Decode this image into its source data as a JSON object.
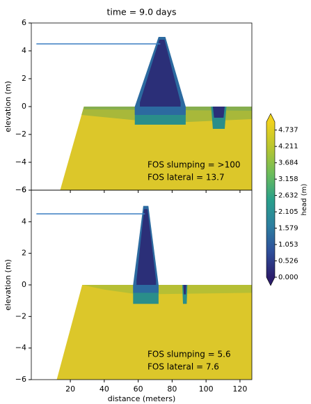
{
  "chart_data": [
    {
      "type": "contour",
      "title": "time = 9.0 days",
      "ylabel": "elevation (m)",
      "xlim": [
        -3,
        127
      ],
      "ylim": [
        -6,
        6
      ],
      "xticks": [
        20,
        40,
        60,
        80,
        100,
        120
      ],
      "yticks": [
        {
          "value": -6,
          "label": "−6"
        },
        {
          "value": -4,
          "label": "−4"
        },
        {
          "value": -2,
          "label": "−2"
        },
        0,
        2,
        4,
        6
      ],
      "water_level": {
        "color": "#3a7dc2",
        "x": [
          0,
          73
        ],
        "y": [
          4.5,
          4.5
        ]
      },
      "regions": [
        {
          "color": "#dcc72a",
          "x": [
            14,
            28,
            127,
            127
          ],
          "y": [
            -6,
            0,
            0,
            -6
          ]
        },
        {
          "color": "#a8b83a",
          "x": [
            26.6,
            28,
            127,
            127,
            90,
            60
          ],
          "y": [
            -0.6,
            0,
            0,
            -0.9,
            -1.1,
            -1.0
          ]
        },
        {
          "color": "#86ae4e",
          "x": [
            28,
            127,
            127,
            28
          ],
          "y": [
            0,
            0,
            -0.3,
            -0.2
          ]
        },
        {
          "color": "#2a8e8a",
          "x": [
            58,
            88,
            88,
            58
          ],
          "y": [
            0,
            0,
            -1.3,
            -1.3
          ]
        },
        {
          "color": "#2c6aa0",
          "x": [
            58,
            72,
            76,
            88,
            88,
            58
          ],
          "y": [
            0,
            5,
            5,
            0,
            -0.6,
            -0.6
          ]
        },
        {
          "color": "#2b2f78",
          "x": [
            61,
            72.5,
            75.5,
            85,
            85,
            61
          ],
          "y": [
            0.3,
            4.8,
            4.8,
            0.3,
            0,
            0
          ]
        },
        {
          "color": "#2a8e8a",
          "x": [
            103,
            112,
            111,
            104
          ],
          "y": [
            0,
            0,
            -1.6,
            -1.6
          ]
        },
        {
          "color": "#2b2f78",
          "x": [
            104,
            111,
            110.3,
            104.7
          ],
          "y": [
            0,
            0,
            -0.8,
            -0.8
          ]
        }
      ],
      "annotations": [
        "FOS slumping = >100",
        "FOS lateral = 13.7"
      ]
    },
    {
      "type": "contour",
      "ylabel": "elevation (m)",
      "xlabel": "distance (meters)",
      "xlim": [
        -3,
        127
      ],
      "ylim": [
        -6,
        6
      ],
      "xticks": [
        20,
        40,
        60,
        80,
        100,
        120
      ],
      "yticks": [
        {
          "value": -6,
          "label": "−6"
        },
        {
          "value": -4,
          "label": "−4"
        },
        {
          "value": -2,
          "label": "−2"
        },
        0,
        2,
        4,
        6
      ],
      "water_level": {
        "color": "#3a7dc2",
        "x": [
          0,
          64
        ],
        "y": [
          4.5,
          4.5
        ]
      },
      "regions": [
        {
          "color": "#dcc72a",
          "x": [
            12,
            27,
            127,
            127
          ],
          "y": [
            -6,
            0,
            0,
            -6
          ]
        },
        {
          "color": "#b6bf34",
          "x": [
            27,
            127,
            127,
            60,
            40
          ],
          "y": [
            0,
            0,
            -0.5,
            -0.6,
            -0.3
          ]
        },
        {
          "color": "#2a8e8a",
          "x": [
            57,
            72,
            72,
            57
          ],
          "y": [
            0,
            0,
            -1.2,
            -1.2
          ]
        },
        {
          "color": "#2c6aa0",
          "x": [
            57,
            63,
            66,
            72,
            72,
            57
          ],
          "y": [
            0,
            5,
            5,
            0,
            -0.5,
            -0.5
          ]
        },
        {
          "color": "#2b2f78",
          "x": [
            59,
            63.5,
            65.5,
            70.5,
            70.5,
            59
          ],
          "y": [
            0.3,
            4.8,
            4.8,
            0.3,
            0,
            0
          ]
        },
        {
          "color": "#2a8e8a",
          "x": [
            86,
            89,
            88.6,
            86.4
          ],
          "y": [
            0,
            0,
            -1.2,
            -1.2
          ]
        },
        {
          "color": "#2b2f78",
          "x": [
            86.6,
            88.4,
            88.1,
            86.9
          ],
          "y": [
            0,
            0,
            -0.6,
            -0.6
          ]
        }
      ],
      "annotations": [
        "FOS slumping = 5.6",
        "FOS lateral = 7.6"
      ]
    },
    {
      "type": "colorbar",
      "label": "head (m)",
      "clim": [
        0,
        5.0
      ],
      "colors": [
        "#2b1d6b",
        "#2f4f9a",
        "#2d7fa0",
        "#2aa08a",
        "#6cbc5a",
        "#b8c630",
        "#f0d21e"
      ],
      "ticks": [
        {
          "value": 0,
          "label": "0.000"
        },
        0.526,
        1.053,
        1.579,
        2.105,
        2.632,
        3.158,
        3.684,
        4.211,
        4.737
      ]
    }
  ]
}
